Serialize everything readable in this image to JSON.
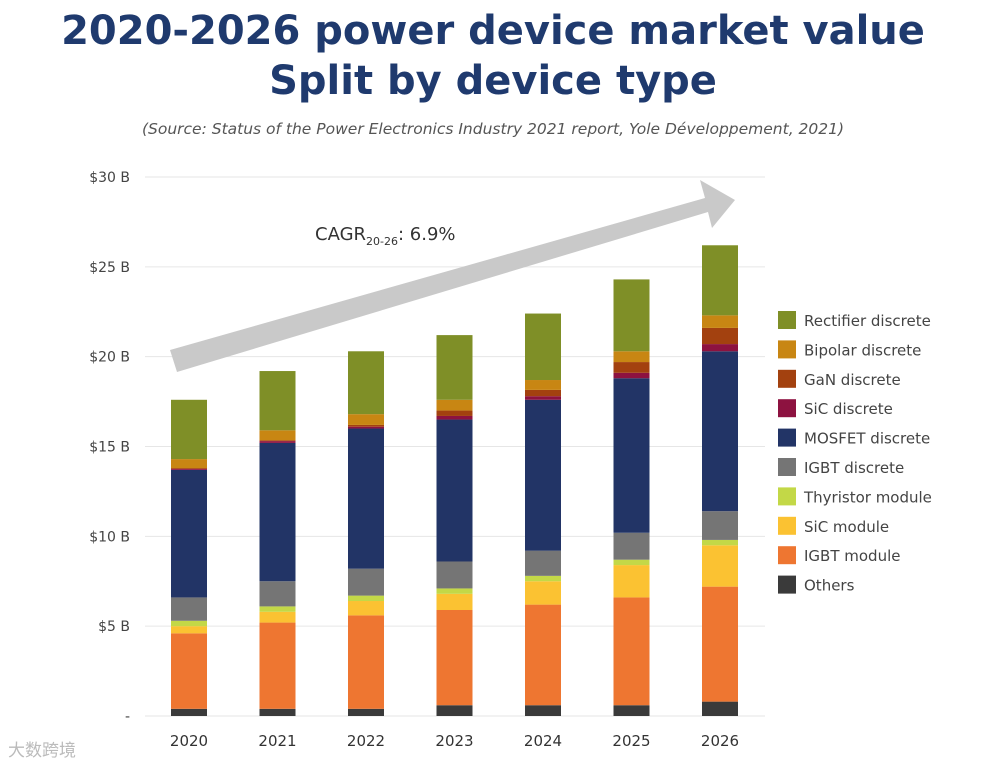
{
  "header": {
    "title": "2020-2026 power device market value",
    "subtitle": "Split by device type",
    "source": "(Source: Status of the Power Electronics Industry 2021 report, Yole Développement, 2021)"
  },
  "watermark": "大数跨境",
  "chart_data": {
    "type": "bar",
    "stacked": true,
    "title": "2020-2026 power device market value Split by device type",
    "xlabel": "",
    "ylabel": "",
    "ylim": [
      0,
      30
    ],
    "y_ticks": [
      {
        "v": 0,
        "label": "-"
      },
      {
        "v": 5,
        "label": "$5 B"
      },
      {
        "v": 10,
        "label": "$10 B"
      },
      {
        "v": 15,
        "label": "$15 B"
      },
      {
        "v": 20,
        "label": "$20 B"
      },
      {
        "v": 25,
        "label": "$25 B"
      },
      {
        "v": 30,
        "label": "$30 B"
      }
    ],
    "categories": [
      "2020",
      "2021",
      "2022",
      "2023",
      "2024",
      "2025",
      "2026"
    ],
    "annotation": {
      "text": "CAGR",
      "sub": "20-26",
      "value": ": 6.9%"
    },
    "legend_position": "right",
    "series": [
      {
        "name": "Others",
        "color": "#3a3a3a",
        "values": [
          0.4,
          0.4,
          0.4,
          0.6,
          0.6,
          0.6,
          0.8
        ]
      },
      {
        "name": "IGBT module",
        "color": "#ee7631",
        "values": [
          4.2,
          4.8,
          5.2,
          5.3,
          5.6,
          6.0,
          6.4
        ]
      },
      {
        "name": "SiC module",
        "color": "#fbc232",
        "values": [
          0.4,
          0.6,
          0.8,
          0.9,
          1.3,
          1.8,
          2.3
        ]
      },
      {
        "name": "Thyristor module",
        "color": "#c3d847",
        "values": [
          0.3,
          0.3,
          0.3,
          0.3,
          0.3,
          0.3,
          0.3
        ]
      },
      {
        "name": "IGBT discrete",
        "color": "#757575",
        "values": [
          1.3,
          1.4,
          1.5,
          1.5,
          1.4,
          1.5,
          1.6
        ]
      },
      {
        "name": "MOSFET discrete",
        "color": "#223466",
        "values": [
          7.1,
          7.7,
          7.8,
          7.9,
          8.4,
          8.6,
          8.9
        ]
      },
      {
        "name": "SiC discrete",
        "color": "#8d1240",
        "values": [
          0.05,
          0.1,
          0.1,
          0.2,
          0.2,
          0.3,
          0.4
        ]
      },
      {
        "name": "GaN discrete",
        "color": "#a3410f",
        "values": [
          0.05,
          0.05,
          0.1,
          0.3,
          0.35,
          0.6,
          0.9
        ]
      },
      {
        "name": "Bipolar discrete",
        "color": "#c88613",
        "values": [
          0.5,
          0.55,
          0.6,
          0.6,
          0.55,
          0.6,
          0.7
        ]
      },
      {
        "name": "Rectifier discrete",
        "color": "#7f8f27",
        "values": [
          3.3,
          3.3,
          3.5,
          3.6,
          3.7,
          4.0,
          3.9
        ]
      }
    ]
  }
}
